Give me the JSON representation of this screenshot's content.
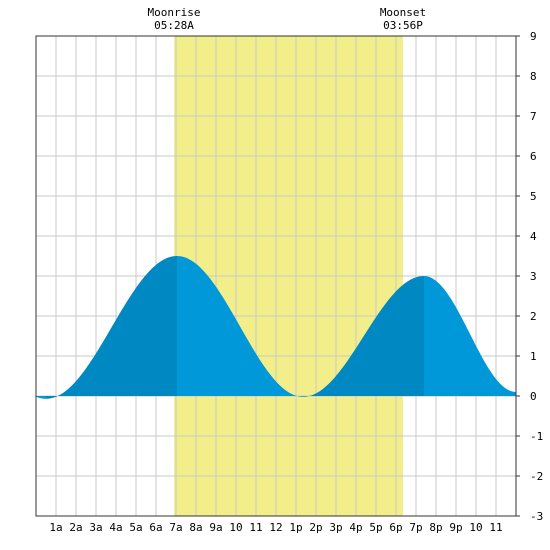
{
  "chart_data": {
    "type": "area",
    "moonrise": {
      "label": "Moonrise",
      "time": "05:28A"
    },
    "moonset": {
      "label": "Moonset",
      "time": "03:56P"
    },
    "daylight_band_hours": [
      6.9,
      18.35
    ],
    "x_tick_labels": [
      "1a",
      "2a",
      "3a",
      "4a",
      "5a",
      "6a",
      "7a",
      "8a",
      "9a",
      "10",
      "11",
      "12",
      "1p",
      "2p",
      "3p",
      "4p",
      "5p",
      "6p",
      "7p",
      "8p",
      "9p",
      "10",
      "11"
    ],
    "xlim": [
      0,
      24
    ],
    "ylim": [
      -3,
      9
    ],
    "y_ticks": [
      -3,
      -2,
      -1,
      0,
      1,
      2,
      3,
      4,
      5,
      6,
      7,
      8,
      9
    ],
    "grid": true,
    "series": [
      {
        "extrema": [
          {
            "hour": 0.5,
            "value": -0.07
          },
          {
            "hour": 7.05,
            "value": 3.5
          },
          {
            "hour": 13.35,
            "value": -0.02
          },
          {
            "hour": 19.4,
            "value": 3.0
          }
        ],
        "end_value": 0.1,
        "colors": {
          "rising": "#0088c2",
          "falling": "#0098d8"
        }
      }
    ],
    "colors": {
      "daylight": "#f2ef8a",
      "grid": "#c9c9c9",
      "frame": "#333333"
    }
  }
}
